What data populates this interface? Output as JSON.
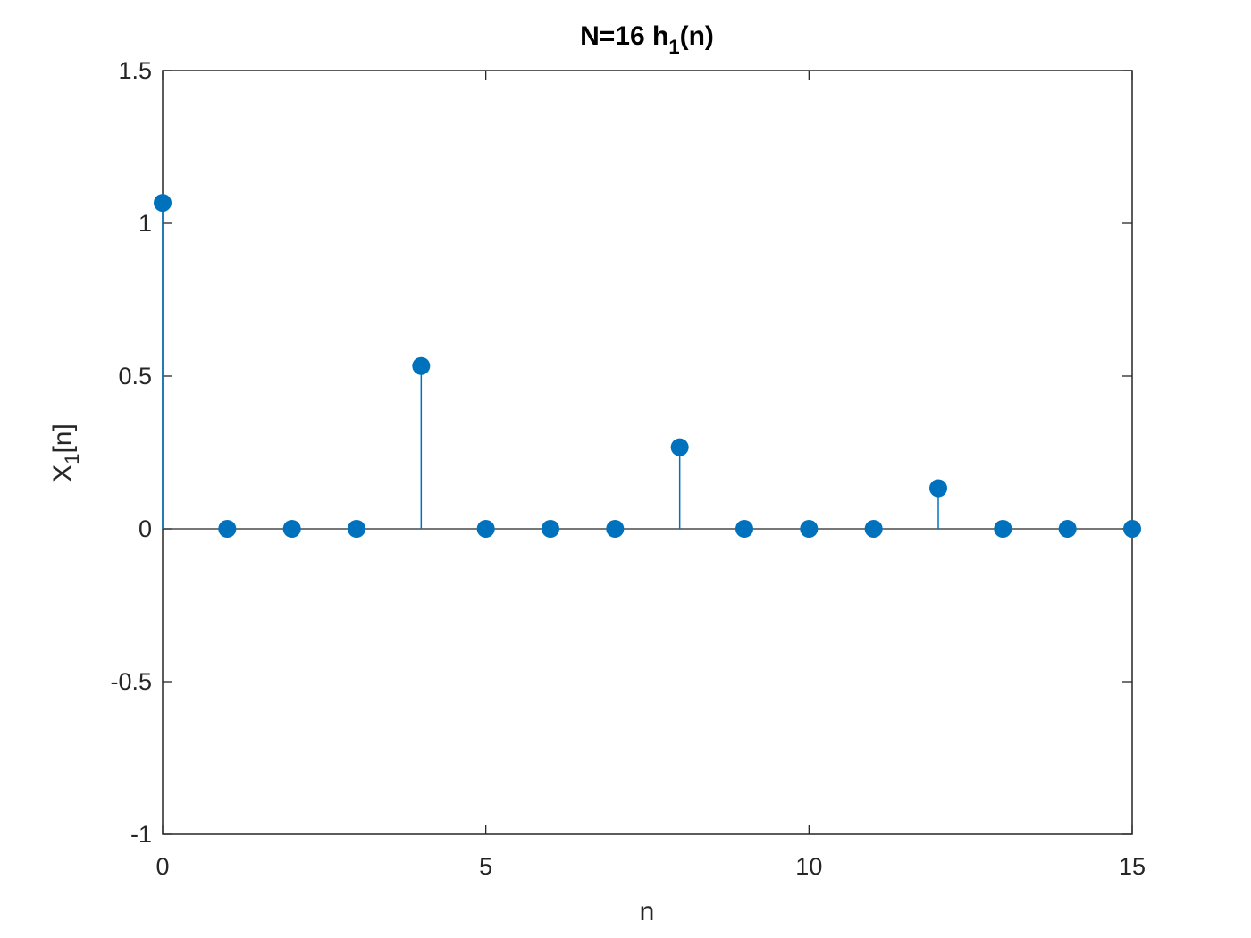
{
  "chart_data": {
    "type": "stem",
    "title": {
      "main": "N=16 h",
      "sub": "1",
      "suffix": "(n)"
    },
    "xlabel": "n",
    "ylabel": {
      "main": "X",
      "sub": "1",
      "suffix": "[n]"
    },
    "xlim": [
      0,
      15
    ],
    "ylim": [
      -1,
      1.5
    ],
    "xticks": [
      0,
      5,
      10,
      15
    ],
    "xtick_labels": [
      "0",
      "5",
      "10",
      "15"
    ],
    "yticks": [
      -1,
      -0.5,
      0,
      0.5,
      1,
      1.5
    ],
    "ytick_labels": [
      "-1",
      "-0.5",
      "0",
      "0.5",
      "1",
      "1.5"
    ],
    "grid": false,
    "baseline": 0,
    "color": "#0072BD",
    "axis_color": "#262626",
    "x": [
      0,
      1,
      2,
      3,
      4,
      5,
      6,
      7,
      8,
      9,
      10,
      11,
      12,
      13,
      14,
      15
    ],
    "y": [
      1.067,
      0,
      0,
      0,
      0.533,
      0,
      0,
      0,
      0.267,
      0,
      0,
      0,
      0.133,
      0,
      0,
      0
    ]
  }
}
